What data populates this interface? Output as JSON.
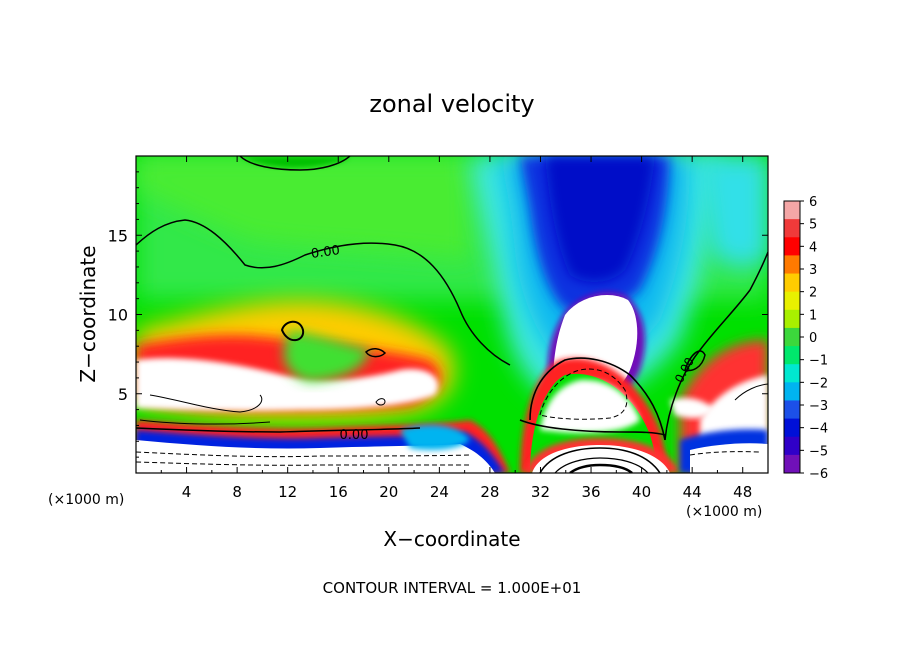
{
  "chart_data": {
    "type": "heatmap",
    "title": "zonal velocity",
    "xlabel": "X−coordinate",
    "ylabel": "Z−coordinate",
    "x_unit": "(×1000 m)",
    "y_unit": "(×1000 m)",
    "xlim": [
      0,
      50
    ],
    "ylim": [
      0,
      20
    ],
    "x_ticks": [
      "4",
      "8",
      "12",
      "16",
      "20",
      "24",
      "28",
      "32",
      "36",
      "40",
      "44",
      "48"
    ],
    "y_ticks": [
      "5",
      "10",
      "15"
    ],
    "contour_label": "0.00",
    "footer": "CONTOUR INTERVAL = 1.000E+01",
    "colorbar": {
      "ticks": [
        "6",
        "5",
        "4",
        "3",
        "2",
        "1",
        "0",
        "−1",
        "−2",
        "−3",
        "−4",
        "−5",
        "−6"
      ],
      "range": [
        -6,
        6
      ],
      "colors": [
        "#f4a6a6",
        "#f03a3a",
        "#ff0000",
        "#ff7a00",
        "#ffcc00",
        "#e8f000",
        "#a8f000",
        "#3cd83c",
        "#00e86c",
        "#00e8d0",
        "#00b4f0",
        "#1c50e8",
        "#0010d8",
        "#3000c8",
        "#7010b8"
      ]
    }
  }
}
